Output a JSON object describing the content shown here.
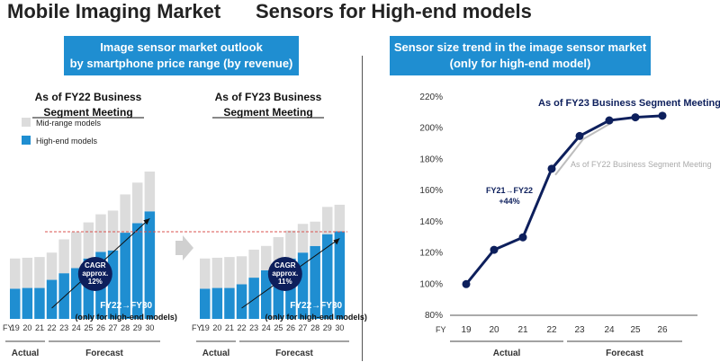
{
  "header": {
    "title_left": "Mobile Imaging Market",
    "title_right": "Sensors for High-end models"
  },
  "left_panel": {
    "banner_line1": "Image sensor market outlook",
    "banner_line2": "by smartphone price range (by revenue)",
    "legend": [
      {
        "label": "Mid-range models",
        "color": "#dcdcdc"
      },
      {
        "label": "High-end models",
        "color": "#1f8ed1"
      }
    ],
    "fy_prefix": "FY",
    "periods": {
      "actual": "Actual",
      "forecast": "Forecast"
    }
  },
  "right_panel": {
    "banner_line1": "Sensor size trend in the image sensor market",
    "banner_line2": "(only for high-end model)"
  },
  "colors": {
    "accent": "#1f8ed1",
    "navy": "#0d1f5c",
    "mid": "#dcdcdc",
    "gray_line": "#bdbdbd",
    "dash_red": "#d9534f"
  },
  "chart_data": [
    {
      "type": "bar",
      "title": "As of FY22 Business Segment Meeting",
      "subtitle_line1": "As of FY22 Business",
      "subtitle_line2": "Segment Meeting",
      "categories": [
        "19",
        "20",
        "21",
        "22",
        "23",
        "24",
        "25",
        "26",
        "27",
        "28",
        "29",
        "30"
      ],
      "series": [
        {
          "name": "High-end models",
          "values": [
            41,
            42,
            42,
            53,
            62,
            69,
            82,
            91,
            93,
            117,
            130,
            146
          ]
        },
        {
          "name": "Mid-range models",
          "values": [
            41,
            41,
            42,
            37,
            46,
            49,
            49,
            51,
            54,
            52,
            55,
            54
          ]
        }
      ],
      "ylim": [
        0,
        210
      ],
      "annotation_cagr": [
        "CAGR",
        "approx.",
        "12%"
      ],
      "annotation_range": [
        "FY22→FY30",
        "(only for high-end models)"
      ]
    },
    {
      "type": "bar",
      "title": "As of FY23 Business Segment Meeting",
      "subtitle_line1": "As of FY23 Business",
      "subtitle_line2": "Segment Meeting",
      "categories": [
        "19",
        "20",
        "21",
        "22",
        "23",
        "24",
        "25",
        "26",
        "27",
        "28",
        "29",
        "30"
      ],
      "series": [
        {
          "name": "High-end models",
          "values": [
            41,
            42,
            42,
            47,
            56,
            66,
            72,
            82,
            90,
            99,
            115,
            119
          ]
        },
        {
          "name": "Mid-range models",
          "values": [
            41,
            41,
            42,
            38,
            38,
            33,
            39,
            38,
            39,
            33,
            37,
            36
          ]
        }
      ],
      "ylim": [
        0,
        210
      ],
      "annotation_cagr": [
        "CAGR",
        "approx.",
        "11%"
      ],
      "annotation_range": [
        "FY22→FY30",
        "(only for high-end models)"
      ]
    },
    {
      "type": "line",
      "title": "Sensor size trend in the image sensor market (only for high-end model)",
      "x": [
        "19",
        "20",
        "21",
        "22",
        "23",
        "24",
        "25",
        "26"
      ],
      "xlabel_prefix": "FY",
      "series": [
        {
          "name": "As of FY23 Business Segment Meeting",
          "x": [
            "19",
            "20",
            "21",
            "22",
            "23",
            "24",
            "25",
            "26"
          ],
          "values": [
            100,
            122,
            130,
            174,
            195,
            205,
            207,
            208
          ]
        },
        {
          "name": "As of FY22 Business Segment Meeting",
          "x": [
            "22",
            "23",
            "24"
          ],
          "values": [
            170,
            193,
            204
          ]
        }
      ],
      "yticks": [
        "80%",
        "100%",
        "120%",
        "140%",
        "160%",
        "180%",
        "200%",
        "220%"
      ],
      "ylim": [
        80,
        220
      ],
      "annotation": [
        "FY21→FY22",
        "+44%"
      ],
      "periods": {
        "actual": "Actual",
        "forecast": "Forecast"
      }
    }
  ]
}
